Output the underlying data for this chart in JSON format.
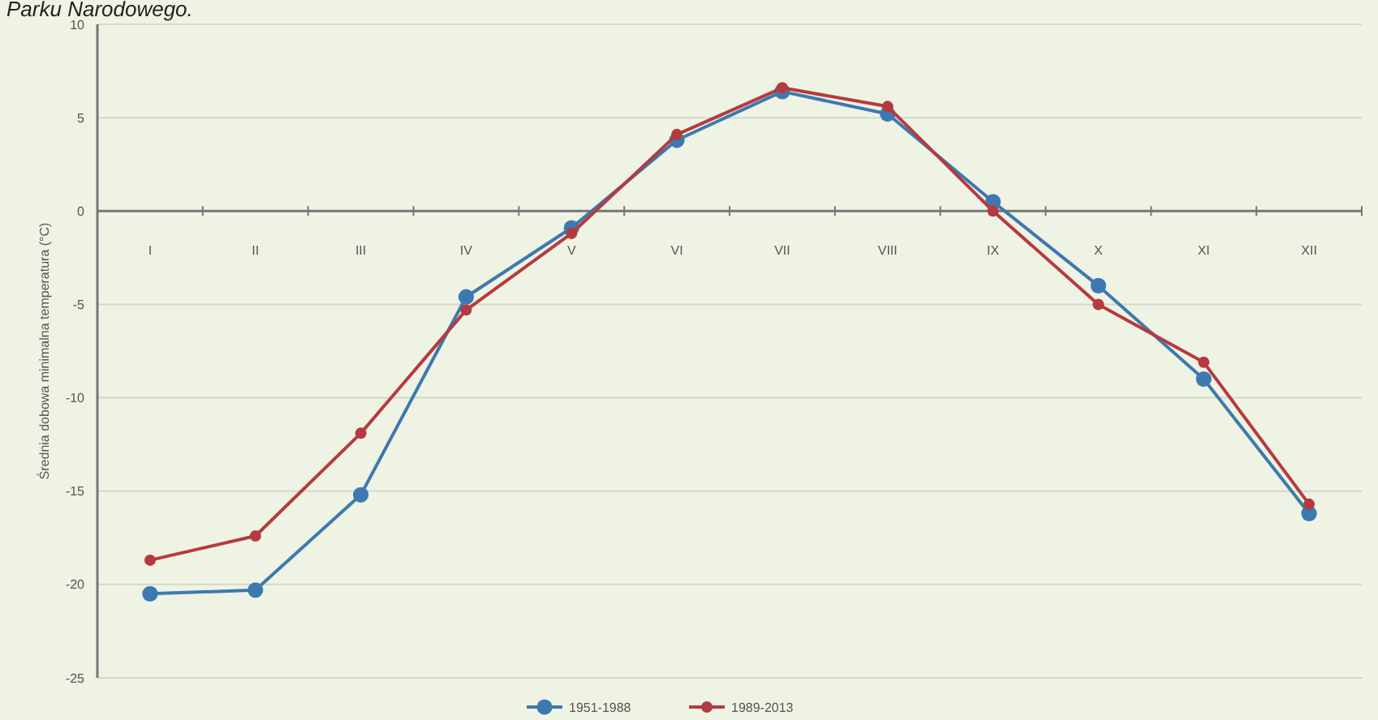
{
  "chart_data": {
    "type": "line",
    "title": "Parku Narodowego.",
    "ylabel": "Średnia dobowa minimalna temperatura (°C)",
    "categories": [
      "I",
      "II",
      "III",
      "IV",
      "V",
      "VI",
      "VII",
      "VIII",
      "IX",
      "X",
      "XI",
      "XII"
    ],
    "series": [
      {
        "name": "1951-1988",
        "color": "#3d79b0",
        "values": [
          -20.5,
          -20.3,
          -15.2,
          -4.6,
          -0.9,
          3.8,
          6.4,
          5.2,
          0.5,
          -4.0,
          -9.0,
          -16.2
        ]
      },
      {
        "name": "1989-2013",
        "color": "#b53a3f",
        "values": [
          -18.7,
          -17.4,
          -11.9,
          -5.3,
          -1.2,
          4.1,
          6.6,
          5.6,
          0.0,
          -5.0,
          -8.1,
          -15.7
        ]
      }
    ],
    "ylim": [
      -25,
      10
    ],
    "yticks": [
      -25,
      -20,
      -15,
      -10,
      -5,
      0,
      5,
      10
    ],
    "grid": "y",
    "legend": "bottom",
    "marker": "circle",
    "line_style": "solid"
  }
}
